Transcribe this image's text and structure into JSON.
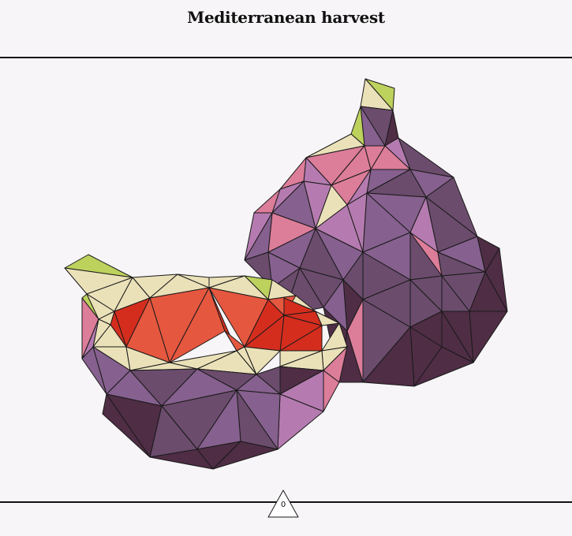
{
  "title": "Mediterranean harvest",
  "page": {
    "number": "0"
  },
  "colors": {
    "background": "#f7f5f7",
    "rule": "#111111",
    "skin_dark": "#4f2d45",
    "skin_mid": "#6b4c6d",
    "skin_purple": "#86608e",
    "skin_light": "#b57bb0",
    "skin_pink": "#dc7d9a",
    "flesh": "#e6573f",
    "flesh_deep": "#d42d1e",
    "rind": "#ebe1b9",
    "stem_green": "#bdd15d"
  },
  "artwork": {
    "subject": "low-poly figs"
  }
}
